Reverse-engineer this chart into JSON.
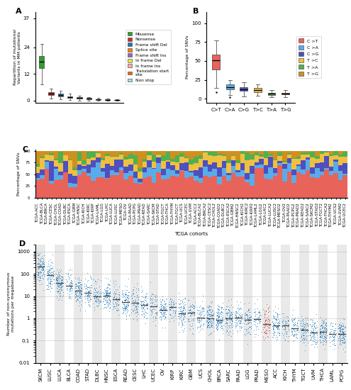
{
  "panel_A": {
    "title": "A",
    "ylabel": "Repartition of mutational\nVariants in MM patients",
    "yticks": [
      0,
      12,
      24,
      37
    ],
    "ylim": [
      -1,
      40
    ]
  },
  "panel_B": {
    "title": "B",
    "ylabel": "Percentage of SNVs",
    "categories": [
      "C>T",
      "C>A",
      "C>G",
      "T>C",
      "T>A",
      "T>G"
    ],
    "colors": [
      "#e8635a",
      "#5aace8",
      "#4f4fbf",
      "#f0c040",
      "#50b050",
      "#d09020"
    ],
    "ylim": [
      -5,
      115
    ],
    "yticks": [
      0,
      25,
      50,
      75,
      100
    ]
  },
  "panel_C": {
    "title": "C",
    "ylabel": "Percentage of SNVs",
    "xlabel": "TCGA cohorts",
    "colors": [
      "#e8635a",
      "#5aace8",
      "#4f4fbf",
      "#f0c040",
      "#50b050",
      "#d09020"
    ],
    "n_bars": 67
  },
  "panel_D": {
    "title": "D",
    "ylabel": "Number of non-synonymous\nmutations per megabase",
    "cohorts": [
      "SKCM",
      "LUSC",
      "LUCA",
      "BLCA",
      "COAD",
      "STAD",
      "DLBC",
      "HNSC",
      "ESCA",
      "READ",
      "CESC",
      "LHC",
      "UCEC",
      "OV",
      "KIRP",
      "KIRC",
      "GBM",
      "UCS",
      "CHOL",
      "BRCA",
      "SARC",
      "PAAD",
      "LGG",
      "PRAD",
      "MESO",
      "ACC",
      "KICH",
      "THYM",
      "TGCT",
      "UVM",
      "THCA",
      "LAML",
      "PCPG"
    ],
    "log_medians": [
      2.3,
      1.95,
      1.6,
      1.5,
      1.25,
      1.15,
      1.05,
      0.95,
      0.85,
      0.7,
      0.7,
      0.58,
      0.58,
      0.47,
      0.4,
      0.26,
      0.18,
      0.1,
      0.0,
      0.0,
      -0.05,
      -0.07,
      -0.1,
      -0.15,
      -0.19,
      -0.3,
      -0.35,
      -0.46,
      -0.52,
      -0.6,
      -0.66,
      -0.7,
      -0.74
    ],
    "meso_idx": 24,
    "meso_color": "#d62728",
    "dot_color": "#1f77b4",
    "median_color": "#444444"
  },
  "legend_A": {
    "labels": [
      "Missense",
      "Nonsense",
      "Frame shift Del",
      "Splice site",
      "Frame shift Ins",
      "In frame Del",
      "In frame Ins",
      "Translation start\nsite",
      "Non stop"
    ],
    "colors": [
      "#2ca02c",
      "#d62728",
      "#1f77b4",
      "#ff7f0e",
      "#9467bd",
      "#e8e840",
      "#ffaaaa",
      "#ff6600",
      "#add8e6"
    ]
  },
  "legend_B": {
    "labels": [
      "C >T",
      "C >A",
      "C >G",
      "T >C",
      "T >A",
      "T >G"
    ],
    "colors": [
      "#e8635a",
      "#5aace8",
      "#4f4fbf",
      "#f0c040",
      "#50b050",
      "#d09020"
    ]
  },
  "background_color": "#ffffff"
}
